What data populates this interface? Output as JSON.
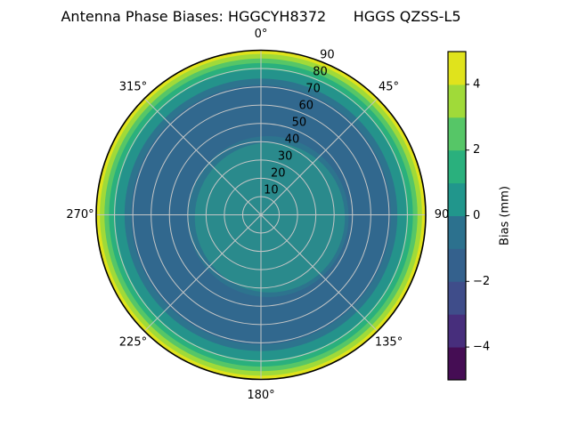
{
  "chart_data": {
    "type": "heatmap",
    "projection": "polar",
    "title": "Antenna Phase Biases: HGGCYH8372      HGGS QZSS-L5",
    "grid_color": "#c4c6c6",
    "outline_color": "#000000",
    "theta_tick_labels": [
      {
        "angle_deg": 0,
        "label": "0°"
      },
      {
        "angle_deg": 45,
        "label": "45°"
      },
      {
        "angle_deg": 90,
        "label": "90"
      },
      {
        "angle_deg": 135,
        "label": "135°"
      },
      {
        "angle_deg": 180,
        "label": "180°"
      },
      {
        "angle_deg": 225,
        "label": "225°"
      },
      {
        "angle_deg": 270,
        "label": "270°"
      },
      {
        "angle_deg": 315,
        "label": "315°"
      }
    ],
    "r_max": 90,
    "r_grid_step": 10,
    "r_label_angle_deg": 22.5,
    "r_tick_labels": [
      {
        "value": 10,
        "label": "10"
      },
      {
        "value": 20,
        "label": "20"
      },
      {
        "value": 30,
        "label": "30"
      },
      {
        "value": 40,
        "label": "40"
      },
      {
        "value": 50,
        "label": "50"
      },
      {
        "value": 60,
        "label": "60"
      },
      {
        "value": 70,
        "label": "70"
      },
      {
        "value": 80,
        "label": "80"
      },
      {
        "value": 90,
        "label": "90"
      }
    ],
    "rings": [
      {
        "r_from": 0,
        "r_to": 41,
        "bias_band": "0 to 1",
        "color": "#2a8a8c",
        "ox": 10,
        "oy": 3
      },
      {
        "r_from": 41,
        "r_to": 44,
        "bias_band": "-1 to 0",
        "color": "#2d748e",
        "ox": 8,
        "oy": 2
      },
      {
        "r_from": 44,
        "r_to": 71,
        "bias_band": "-2 to -1",
        "color": "#31688e",
        "ox": 0,
        "oy": 0
      },
      {
        "r_from": 71,
        "r_to": 74.5,
        "bias_band": "-1 to 0",
        "color": "#2d748e",
        "ox": 0,
        "oy": 0
      },
      {
        "r_from": 74.5,
        "r_to": 79.5,
        "bias_band": "0 to 1",
        "color": "#24938b",
        "ox": 0,
        "oy": 0
      },
      {
        "r_from": 79.5,
        "r_to": 83,
        "bias_band": "1 to 2",
        "color": "#2ab07d",
        "ox": 0,
        "oy": 0
      },
      {
        "r_from": 83,
        "r_to": 85.5,
        "bias_band": "2 to 3",
        "color": "#56c667",
        "ox": 0,
        "oy": 0
      },
      {
        "r_from": 85.5,
        "r_to": 88,
        "bias_band": "3 to 4",
        "color": "#a0da39",
        "ox": 0,
        "oy": 0
      },
      {
        "r_from": 88,
        "r_to": 90,
        "bias_band": "4 to 5",
        "color": "#e0e31c",
        "ox": 0,
        "oy": 0
      }
    ],
    "colorbar": {
      "label": "Bias (mm)",
      "vmin": -5,
      "vmax": 5,
      "tick_labels": [
        {
          "value": 4,
          "label": "4"
        },
        {
          "value": 2,
          "label": "2"
        },
        {
          "value": 0,
          "label": "0"
        },
        {
          "value": -2,
          "label": "−2"
        },
        {
          "value": -4,
          "label": "−4"
        }
      ],
      "segments_bottom_to_top": [
        {
          "bias_band": "−5 to −4",
          "color": "#450d54"
        },
        {
          "bias_band": "−4 to −3",
          "color": "#472e7c"
        },
        {
          "bias_band": "−3 to −2",
          "color": "#3f4d8a"
        },
        {
          "bias_band": "−2 to −1",
          "color": "#34618d"
        },
        {
          "bias_band": "−1 to 0",
          "color": "#2c718e"
        },
        {
          "bias_band": "0 to 1",
          "color": "#21968c"
        },
        {
          "bias_band": "1 to 2",
          "color": "#2ab07d"
        },
        {
          "bias_band": "2 to 3",
          "color": "#56c667"
        },
        {
          "bias_band": "3 to 4",
          "color": "#a0da39"
        },
        {
          "bias_band": "4 to 5",
          "color": "#e0e31c"
        }
      ]
    }
  }
}
